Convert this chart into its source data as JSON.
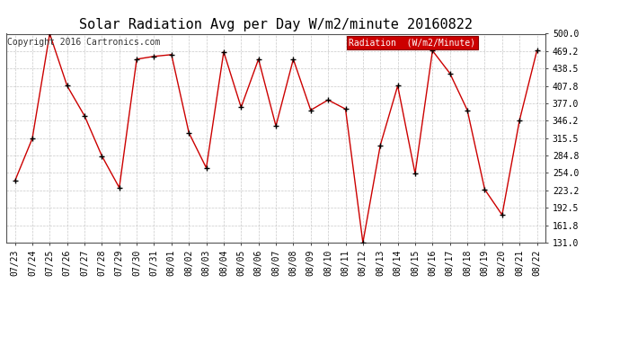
{
  "title": "Solar Radiation Avg per Day W/m2/minute 20160822",
  "copyright_text": "Copyright 2016 Cartronics.com",
  "legend_label": "Radiation  (W/m2/Minute)",
  "dates": [
    "07/23",
    "07/24",
    "07/25",
    "07/26",
    "07/27",
    "07/28",
    "07/29",
    "07/30",
    "07/31",
    "08/01",
    "08/02",
    "08/03",
    "08/04",
    "08/05",
    "08/06",
    "08/07",
    "08/08",
    "08/09",
    "08/10",
    "08/11",
    "08/12",
    "08/13",
    "08/14",
    "08/15",
    "08/16",
    "08/17",
    "08/18",
    "08/19",
    "08/20",
    "08/21",
    "08/22"
  ],
  "values": [
    240,
    315,
    500,
    408,
    355,
    284,
    228,
    455,
    460,
    463,
    325,
    263,
    468,
    370,
    455,
    337,
    455,
    365,
    383,
    367,
    131,
    303,
    408,
    253,
    470,
    430,
    365,
    225,
    180,
    347,
    470
  ],
  "line_color": "#cc0000",
  "marker_color": "#000000",
  "bg_color": "#ffffff",
  "grid_color": "#bbbbbb",
  "ylim_min": 131.0,
  "ylim_max": 500.0,
  "yticks": [
    131.0,
    161.8,
    192.5,
    223.2,
    254.0,
    284.8,
    315.5,
    346.2,
    377.0,
    407.8,
    438.5,
    469.2,
    500.0
  ],
  "title_fontsize": 11,
  "copyright_fontsize": 7,
  "tick_fontsize": 7,
  "legend_bg_color": "#cc0000",
  "legend_text_color": "#ffffff",
  "legend_fontsize": 7,
  "figwidth": 6.9,
  "figheight": 3.75,
  "dpi": 100
}
